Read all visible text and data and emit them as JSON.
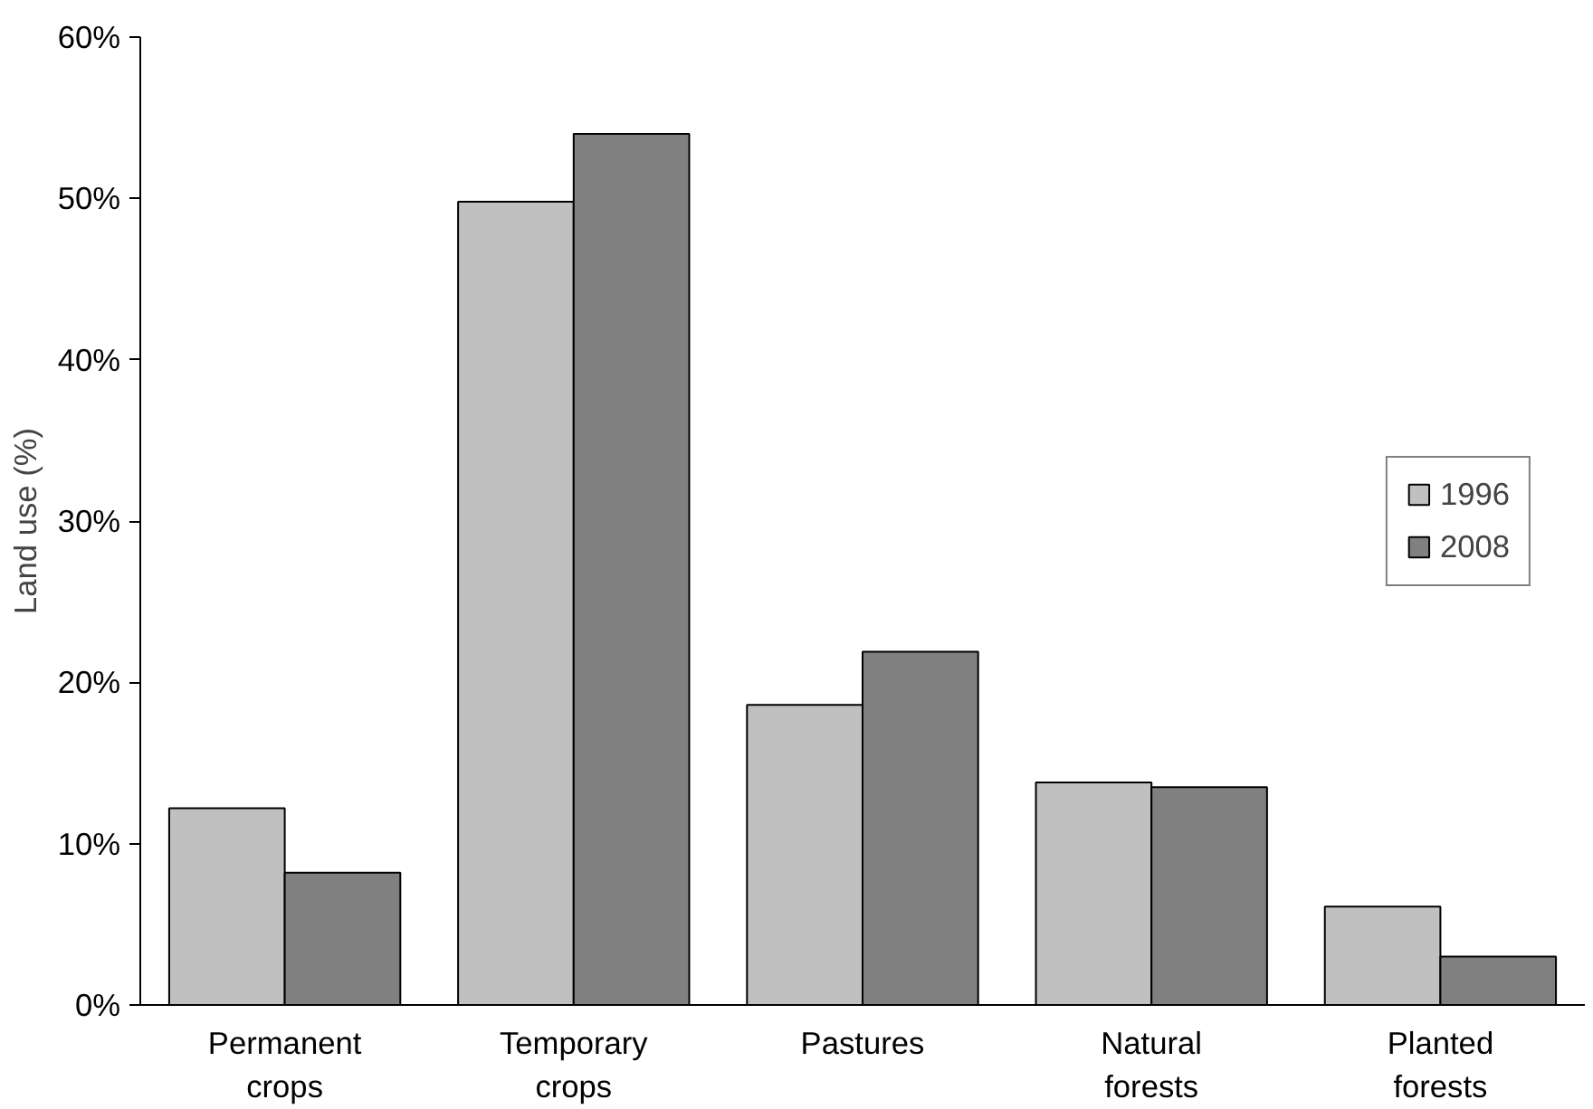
{
  "chart_data": {
    "type": "bar",
    "ylabel": "Land use (%)",
    "categories": [
      "Permanent crops",
      "Temporary crops",
      "Pastures",
      "Natural forests",
      "Planted forests"
    ],
    "series": [
      {
        "name": "1996",
        "color": "#c0c0c0",
        "values": [
          12.2,
          49.8,
          18.6,
          13.8,
          6.1
        ]
      },
      {
        "name": "2008",
        "color": "#808080",
        "values": [
          8.2,
          54.0,
          21.9,
          13.5,
          3.0
        ]
      }
    ],
    "ylim": [
      0,
      60
    ],
    "yticks": [
      {
        "value": 0,
        "label": "0%"
      },
      {
        "value": 10,
        "label": "10%"
      },
      {
        "value": 20,
        "label": "20%"
      },
      {
        "value": 30,
        "label": "30%"
      },
      {
        "value": 40,
        "label": "40%"
      },
      {
        "value": 50,
        "label": "50%"
      },
      {
        "value": 60,
        "label": "60%"
      }
    ],
    "grid": false,
    "legend": "right"
  }
}
